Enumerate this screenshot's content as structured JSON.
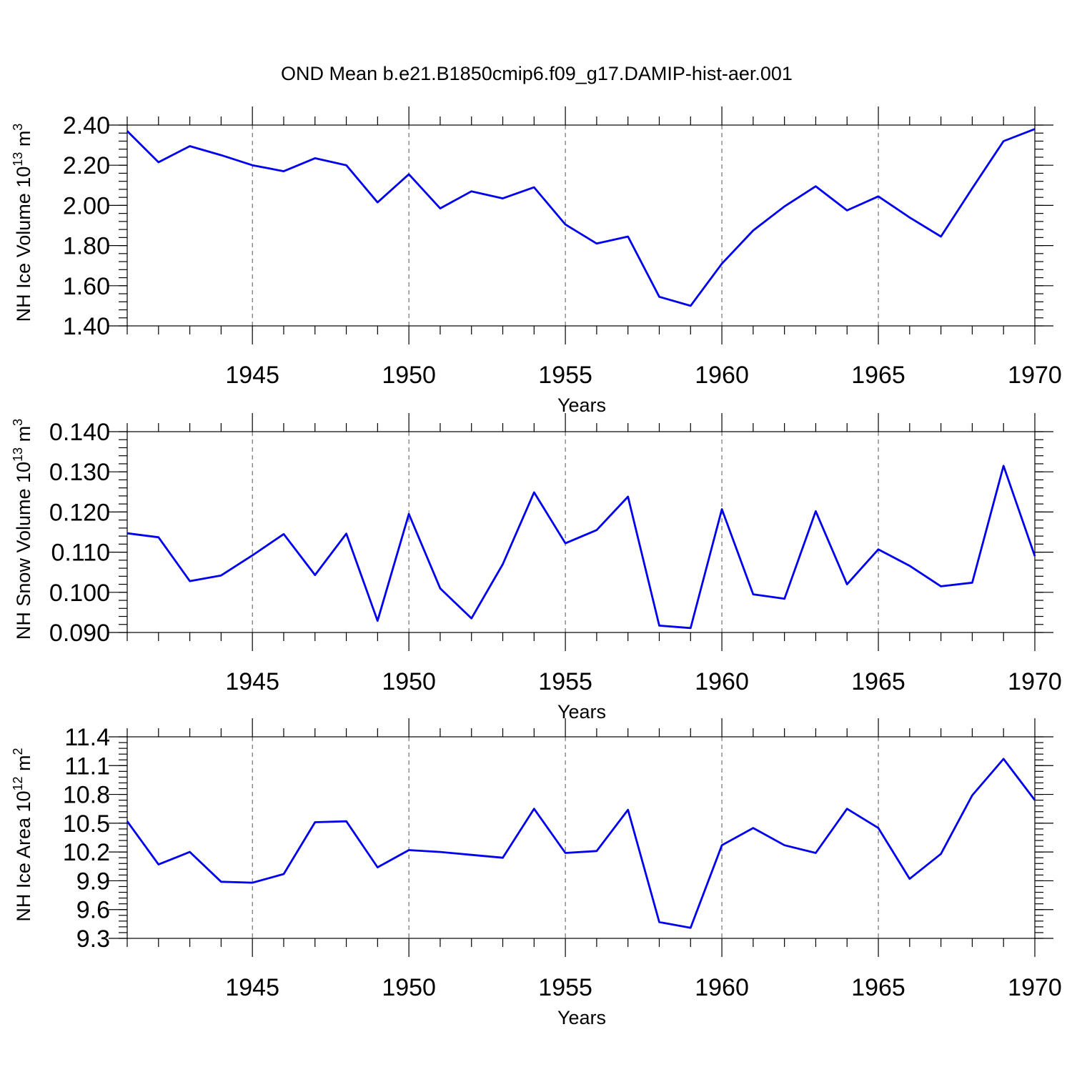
{
  "figure": {
    "title": "OND Mean b.e21.B1850cmip6.f09_g17.DAMIP-hist-aer.001"
  },
  "colors": {
    "line": "#0000ee",
    "axis": "#000000",
    "grid": "#555555"
  },
  "chart_data": [
    {
      "type": "line",
      "id": "ice-volume",
      "ylabel_prefix": "NH Ice Volume 10",
      "ylabel_exp1": "13",
      "ylabel_mid": " m",
      "ylabel_exp2": "3",
      "xlabel": "Years",
      "xlim": [
        1941,
        1970
      ],
      "ylim": [
        1.4,
        2.4
      ],
      "x_ticks": [
        1945,
        1950,
        1955,
        1960,
        1965,
        1970
      ],
      "x_tick_labels": [
        "1945",
        "1950",
        "1955",
        "1960",
        "1965",
        "1970"
      ],
      "y_ticks": [
        1.4,
        1.6,
        1.8,
        2.0,
        2.2,
        2.4
      ],
      "y_tick_labels": [
        "1.40",
        "1.60",
        "1.80",
        "2.00",
        "2.20",
        "2.40"
      ],
      "y_minor_step": 0.04,
      "grid": "vertical dashed at major x ticks",
      "x": [
        1941,
        1942,
        1943,
        1944,
        1945,
        1946,
        1947,
        1948,
        1949,
        1950,
        1951,
        1952,
        1953,
        1954,
        1955,
        1956,
        1957,
        1958,
        1959,
        1960,
        1961,
        1962,
        1963,
        1964,
        1965,
        1966,
        1967,
        1968,
        1969,
        1970
      ],
      "series": [
        {
          "name": "NH Ice Volume",
          "values": [
            2.37,
            2.215,
            2.295,
            2.25,
            2.2,
            2.17,
            2.235,
            2.2,
            2.015,
            2.155,
            1.985,
            2.07,
            2.035,
            2.09,
            1.905,
            1.81,
            1.845,
            1.545,
            1.5,
            1.71,
            1.875,
            1.995,
            2.095,
            1.975,
            2.045,
            1.94,
            1.845,
            2.085,
            2.32,
            2.38
          ]
        }
      ]
    },
    {
      "type": "line",
      "id": "snow-volume",
      "ylabel_prefix": "NH Snow Volume 10",
      "ylabel_exp1": "13",
      "ylabel_mid": " m",
      "ylabel_exp2": "3",
      "xlabel": "Years",
      "xlim": [
        1941,
        1970
      ],
      "ylim": [
        0.09,
        0.14
      ],
      "x_ticks": [
        1945,
        1950,
        1955,
        1960,
        1965,
        1970
      ],
      "x_tick_labels": [
        "1945",
        "1950",
        "1955",
        "1960",
        "1965",
        "1970"
      ],
      "y_ticks": [
        0.09,
        0.1,
        0.11,
        0.12,
        0.13,
        0.14
      ],
      "y_tick_labels": [
        "0.090",
        "0.100",
        "0.110",
        "0.120",
        "0.130",
        "0.140"
      ],
      "y_minor_step": 0.002,
      "grid": "vertical dashed at major x ticks",
      "x": [
        1941,
        1942,
        1943,
        1944,
        1945,
        1946,
        1947,
        1948,
        1949,
        1950,
        1951,
        1952,
        1953,
        1954,
        1955,
        1956,
        1957,
        1958,
        1959,
        1960,
        1961,
        1962,
        1963,
        1964,
        1965,
        1966,
        1967,
        1968,
        1969,
        1970
      ],
      "series": [
        {
          "name": "NH Snow Volume",
          "values": [
            0.1147,
            0.1137,
            0.1028,
            0.1042,
            0.1092,
            0.1145,
            0.1043,
            0.1146,
            0.0929,
            0.1195,
            0.101,
            0.0935,
            0.107,
            0.1249,
            0.1122,
            0.1155,
            0.1238,
            0.0917,
            0.0911,
            0.1207,
            0.0995,
            0.0984,
            0.1202,
            0.102,
            0.1107,
            0.1066,
            0.1015,
            0.1024,
            0.1315,
            0.109
          ]
        }
      ]
    },
    {
      "type": "line",
      "id": "ice-area",
      "ylabel_prefix": "NH Ice Area 10",
      "ylabel_exp1": "12",
      "ylabel_mid": " m",
      "ylabel_exp2": "2",
      "xlabel": "Years",
      "xlim": [
        1941,
        1970
      ],
      "ylim": [
        9.3,
        11.4
      ],
      "x_ticks": [
        1945,
        1950,
        1955,
        1960,
        1965,
        1970
      ],
      "x_tick_labels": [
        "1945",
        "1950",
        "1955",
        "1960",
        "1965",
        "1970"
      ],
      "y_ticks": [
        9.3,
        9.6,
        9.9,
        10.2,
        10.5,
        10.8,
        11.1,
        11.4
      ],
      "y_tick_labels": [
        "9.3",
        "9.6",
        "9.9",
        "10.2",
        "10.5",
        "10.8",
        "11.1",
        "11.4"
      ],
      "y_minor_step": 0.06,
      "grid": "vertical dashed at major x ticks",
      "x": [
        1941,
        1942,
        1943,
        1944,
        1945,
        1946,
        1947,
        1948,
        1949,
        1950,
        1951,
        1952,
        1953,
        1954,
        1955,
        1956,
        1957,
        1958,
        1959,
        1960,
        1961,
        1962,
        1963,
        1964,
        1965,
        1966,
        1967,
        1968,
        1969,
        1970
      ],
      "series": [
        {
          "name": "NH Ice Area",
          "values": [
            10.52,
            10.07,
            10.2,
            9.89,
            9.88,
            9.97,
            10.51,
            10.52,
            10.04,
            10.22,
            10.2,
            10.17,
            10.14,
            10.65,
            10.19,
            10.21,
            10.64,
            9.47,
            9.41,
            10.27,
            10.45,
            10.27,
            10.19,
            10.65,
            10.45,
            9.92,
            10.18,
            10.79,
            11.17,
            10.74
          ]
        }
      ]
    }
  ]
}
